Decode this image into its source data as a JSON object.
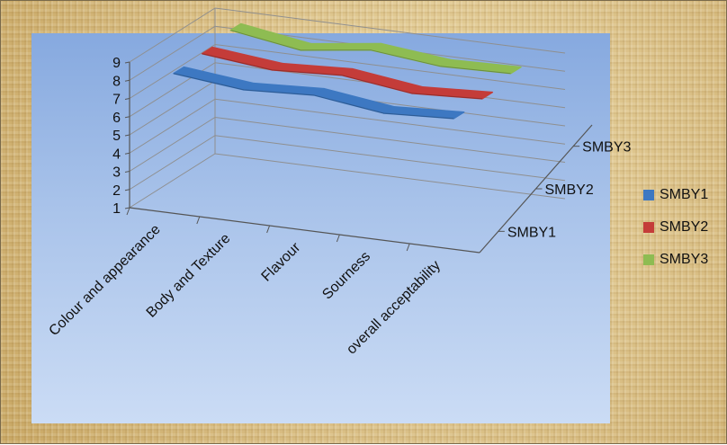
{
  "chart_data": {
    "type": "line",
    "subtype": "3d-line",
    "title": "",
    "xlabel": "",
    "ylabel": "",
    "ylim": [
      1,
      9
    ],
    "yticks": [
      "1",
      "2",
      "3",
      "4",
      "5",
      "6",
      "7",
      "8",
      "9"
    ],
    "grid": true,
    "legend_position": "right",
    "categories": [
      "Colour and appearance",
      "Body and Texture",
      "Flavour",
      "Sourness",
      "overall acceptability"
    ],
    "depth_labels": [
      "SMBY1",
      "SMBY2",
      "SMBY3"
    ],
    "series": [
      {
        "name": "SMBY1",
        "color": "#3d78c2",
        "values": [
          8.3,
          7.9,
          8.1,
          7.6,
          7.8
        ]
      },
      {
        "name": "SMBY2",
        "color": "#c43c39",
        "values": [
          8.4,
          8.0,
          8.2,
          7.7,
          7.9
        ]
      },
      {
        "name": "SMBY3",
        "color": "#8ebc52",
        "values": [
          8.7,
          8.1,
          8.6,
          8.2,
          8.3
        ]
      }
    ]
  }
}
